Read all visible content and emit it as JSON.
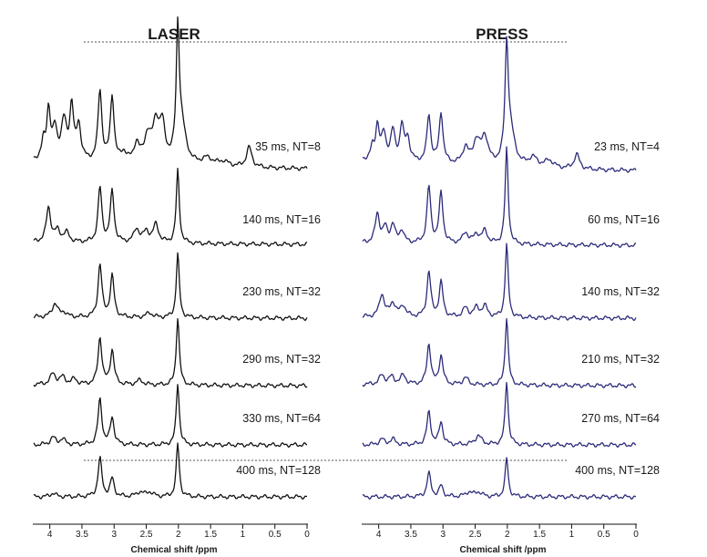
{
  "chart_data": [
    {
      "type": "line",
      "title": "LASER",
      "xlabel": "Chemical shift /ppm",
      "xlim": [
        4.25,
        0
      ],
      "x_reversed": true,
      "x_ticks": [
        "4",
        "3.5",
        "3",
        "2.5",
        "2",
        "1.5",
        "1",
        "0.5",
        "0"
      ],
      "line_color": "#111111",
      "series": [
        {
          "name": "35 ms, NT=8",
          "peaks": [
            [
              4.1,
              0.18,
              0.03
            ],
            [
              4.02,
              0.55,
              0.035
            ],
            [
              3.92,
              0.32,
              0.04
            ],
            [
              3.78,
              0.42,
              0.05
            ],
            [
              3.66,
              0.58,
              0.035
            ],
            [
              3.55,
              0.38,
              0.04
            ],
            [
              3.22,
              0.78,
              0.035
            ],
            [
              3.03,
              0.72,
              0.035
            ],
            [
              2.85,
              0.1,
              0.05
            ],
            [
              2.65,
              0.2,
              0.05
            ],
            [
              2.48,
              0.28,
              0.06
            ],
            [
              2.35,
              0.42,
              0.06
            ],
            [
              2.25,
              0.38,
              0.05
            ],
            [
              2.01,
              1.35,
              0.028
            ],
            [
              1.95,
              0.4,
              0.08
            ],
            [
              1.55,
              0.08,
              0.1
            ],
            [
              1.3,
              0.05,
              0.1
            ],
            [
              0.9,
              0.22,
              0.05
            ]
          ],
          "baseline": [
            0.2,
            0.05
          ]
        },
        {
          "name": "140 ms, NT=16",
          "peaks": [
            [
              4.02,
              0.38,
              0.04
            ],
            [
              3.88,
              0.12,
              0.05
            ],
            [
              3.74,
              0.1,
              0.05
            ],
            [
              3.22,
              0.6,
              0.035
            ],
            [
              3.03,
              0.56,
              0.035
            ],
            [
              2.65,
              0.15,
              0.05
            ],
            [
              2.5,
              0.12,
              0.05
            ],
            [
              2.35,
              0.2,
              0.05
            ],
            [
              2.01,
              0.8,
              0.028
            ]
          ],
          "baseline": [
            0.06,
            0.02
          ]
        },
        {
          "name": "230 ms, NT=32",
          "peaks": [
            [
              3.92,
              0.15,
              0.05
            ],
            [
              3.78,
              0.05,
              0.05
            ],
            [
              3.22,
              0.58,
              0.035
            ],
            [
              3.03,
              0.45,
              0.035
            ],
            [
              2.45,
              0.05,
              0.06
            ],
            [
              2.01,
              0.7,
              0.028
            ]
          ],
          "baseline": [
            0.02,
            0.0
          ]
        },
        {
          "name": "290 ms, NT=32",
          "peaks": [
            [
              3.95,
              0.12,
              0.05
            ],
            [
              3.8,
              0.08,
              0.05
            ],
            [
              3.62,
              0.06,
              0.05
            ],
            [
              3.22,
              0.52,
              0.035
            ],
            [
              3.03,
              0.38,
              0.035
            ],
            [
              2.6,
              0.05,
              0.06
            ],
            [
              2.01,
              0.75,
              0.028
            ]
          ],
          "baseline": [
            0.02,
            0.0
          ]
        },
        {
          "name": "330 ms, NT=64",
          "peaks": [
            [
              3.95,
              0.08,
              0.05
            ],
            [
              3.8,
              0.06,
              0.05
            ],
            [
              3.22,
              0.5,
              0.035
            ],
            [
              3.03,
              0.3,
              0.035
            ],
            [
              2.01,
              0.68,
              0.028
            ]
          ],
          "baseline": [
            0.0,
            0.0
          ]
        },
        {
          "name": "400 ms, NT=128",
          "peaks": [
            [
              3.95,
              0.04,
              0.05
            ],
            [
              3.22,
              0.42,
              0.035
            ],
            [
              3.03,
              0.2,
              0.035
            ],
            [
              2.6,
              0.05,
              0.06
            ],
            [
              2.45,
              0.05,
              0.06
            ],
            [
              2.01,
              0.58,
              0.028
            ]
          ],
          "baseline": [
            0.0,
            0.0
          ]
        }
      ]
    },
    {
      "type": "line",
      "title": "PRESS",
      "xlabel": "Chemical shift /ppm",
      "xlim": [
        4.25,
        0
      ],
      "x_reversed": true,
      "x_ticks": [
        "4",
        "3.5",
        "3",
        "2.5",
        "2",
        "1.5",
        "1",
        "0.5",
        "0"
      ],
      "line_color": "#2b2b7a",
      "series": [
        {
          "name": "23 ms, NT=4",
          "peaks": [
            [
              4.1,
              0.12,
              0.03
            ],
            [
              4.02,
              0.38,
              0.035
            ],
            [
              3.92,
              0.28,
              0.04
            ],
            [
              3.78,
              0.32,
              0.04
            ],
            [
              3.64,
              0.38,
              0.035
            ],
            [
              3.55,
              0.25,
              0.04
            ],
            [
              3.22,
              0.52,
              0.035
            ],
            [
              3.03,
              0.55,
              0.035
            ],
            [
              2.65,
              0.18,
              0.05
            ],
            [
              2.48,
              0.25,
              0.06
            ],
            [
              2.35,
              0.3,
              0.06
            ],
            [
              2.01,
              1.2,
              0.03
            ],
            [
              1.95,
              0.35,
              0.08
            ],
            [
              1.6,
              0.1,
              0.08
            ],
            [
              1.35,
              0.08,
              0.08
            ],
            [
              0.92,
              0.16,
              0.05
            ]
          ],
          "baseline": [
            0.22,
            0.03
          ]
        },
        {
          "name": "60 ms, NT=16",
          "peaks": [
            [
              4.02,
              0.32,
              0.04
            ],
            [
              3.9,
              0.16,
              0.04
            ],
            [
              3.78,
              0.2,
              0.04
            ],
            [
              3.64,
              0.14,
              0.04
            ],
            [
              3.22,
              0.62,
              0.035
            ],
            [
              3.03,
              0.55,
              0.035
            ],
            [
              2.65,
              0.12,
              0.05
            ],
            [
              2.48,
              0.1,
              0.05
            ],
            [
              2.35,
              0.14,
              0.05
            ],
            [
              2.01,
              1.05,
              0.028
            ]
          ],
          "baseline": [
            0.05,
            0.01
          ]
        },
        {
          "name": "140 ms, NT=32",
          "peaks": [
            [
              3.95,
              0.25,
              0.045
            ],
            [
              3.78,
              0.15,
              0.05
            ],
            [
              3.62,
              0.12,
              0.05
            ],
            [
              3.22,
              0.5,
              0.035
            ],
            [
              3.03,
              0.38,
              0.035
            ],
            [
              2.65,
              0.1,
              0.05
            ],
            [
              2.48,
              0.1,
              0.05
            ],
            [
              2.35,
              0.12,
              0.05
            ],
            [
              2.01,
              0.8,
              0.028
            ]
          ],
          "baseline": [
            0.02,
            0.0
          ]
        },
        {
          "name": "210 ms, NT=32",
          "peaks": [
            [
              3.95,
              0.1,
              0.05
            ],
            [
              3.8,
              0.08,
              0.05
            ],
            [
              3.62,
              0.1,
              0.05
            ],
            [
              3.22,
              0.45,
              0.035
            ],
            [
              3.03,
              0.32,
              0.035
            ],
            [
              2.65,
              0.08,
              0.05
            ],
            [
              2.01,
              0.75,
              0.028
            ]
          ],
          "baseline": [
            0.02,
            0.0
          ]
        },
        {
          "name": "270 ms, NT=64",
          "peaks": [
            [
              3.95,
              0.06,
              0.05
            ],
            [
              3.78,
              0.06,
              0.05
            ],
            [
              3.22,
              0.36,
              0.035
            ],
            [
              3.03,
              0.25,
              0.035
            ],
            [
              2.45,
              0.1,
              0.06
            ],
            [
              2.01,
              0.7,
              0.028
            ]
          ],
          "baseline": [
            0.0,
            0.0
          ]
        },
        {
          "name": "400 ms, NT=128",
          "peaks": [
            [
              3.22,
              0.26,
              0.035
            ],
            [
              3.03,
              0.12,
              0.035
            ],
            [
              2.6,
              0.05,
              0.06
            ],
            [
              2.45,
              0.05,
              0.06
            ],
            [
              2.01,
              0.42,
              0.028
            ]
          ],
          "baseline": [
            0.0,
            0.0
          ]
        }
      ]
    }
  ]
}
